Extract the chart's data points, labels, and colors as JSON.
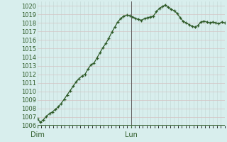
{
  "xlim": [
    0,
    48
  ],
  "ylim": [
    1006,
    1020.5
  ],
  "yticks": [
    1006,
    1007,
    1008,
    1009,
    1010,
    1011,
    1012,
    1013,
    1014,
    1015,
    1016,
    1017,
    1018,
    1019,
    1020
  ],
  "xtick_positions": [
    0,
    24
  ],
  "xtick_labels": [
    "Dim",
    "Lun"
  ],
  "bg_color": "#d8eeed",
  "grid_color_v": "#c5dbd8",
  "grid_color_h": "#d4c4c4",
  "line_color": "#2d5a27",
  "marker_color": "#2d5a27",
  "vline_color": "#606060",
  "bottom_bar_color": "#2d5a27",
  "label_color": "#2d5a27",
  "values": [
    1006.8,
    1006.4,
    1006.7,
    1007.1,
    1007.4,
    1007.6,
    1007.9,
    1008.2,
    1008.6,
    1009.1,
    1009.6,
    1010.1,
    1010.6,
    1011.1,
    1011.5,
    1011.8,
    1012.0,
    1012.6,
    1013.1,
    1013.3,
    1013.9,
    1014.5,
    1015.1,
    1015.6,
    1016.2,
    1016.9,
    1017.5,
    1018.1,
    1018.5,
    1018.8,
    1018.9,
    1018.85,
    1018.7,
    1018.5,
    1018.4,
    1018.3,
    1018.5,
    1018.6,
    1018.7,
    1018.8,
    1019.3,
    1019.7,
    1019.9,
    1020.1,
    1019.8,
    1019.6,
    1019.4,
    1019.1,
    1018.6,
    1018.2,
    1018.0,
    1017.8,
    1017.6,
    1017.5,
    1017.7,
    1018.1,
    1018.2,
    1018.1,
    1018.0,
    1018.1,
    1018.0,
    1017.9,
    1018.1,
    1018.0
  ]
}
